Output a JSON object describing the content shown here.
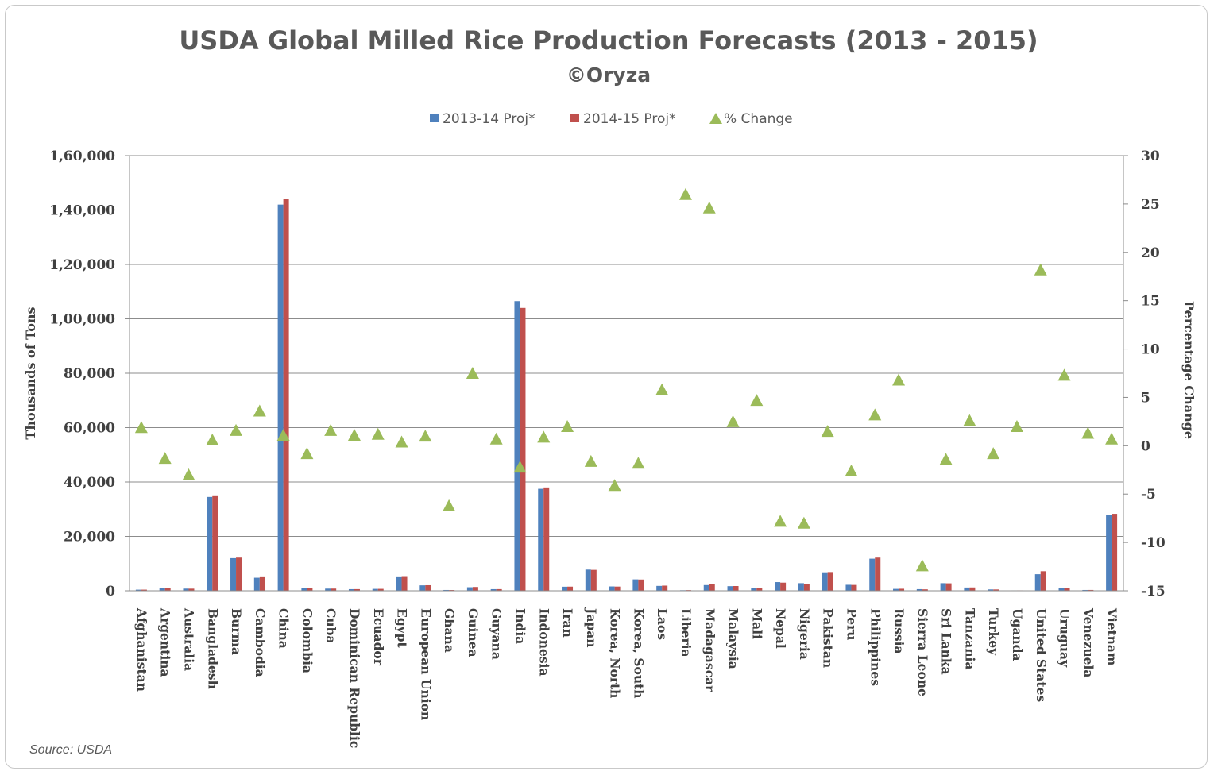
{
  "source_note": "Source: USDA",
  "chart_data": {
    "type": "bar",
    "title": "USDA Global Milled Rice Production Forecasts (2013 - 2015)",
    "subtitle": "©Oryza",
    "ylabel": "Thousands of Tons",
    "y2label": "Percentage Change",
    "ylim": [
      0,
      160000
    ],
    "y2lim": [
      -15,
      30
    ],
    "yticks": [
      "0",
      "20,000",
      "40,000",
      "60,000",
      "80,000",
      "1,00,000",
      "1,20,000",
      "1,40,000",
      "1,60,000"
    ],
    "y2ticks": [
      "-15",
      "-10",
      "-5",
      "0",
      "5",
      "10",
      "15",
      "20",
      "25",
      "30"
    ],
    "grid": true,
    "legend_position": "top-center",
    "colors": {
      "s1": "#4f81bd",
      "s2": "#c0504d",
      "s3": "#9bbb59"
    },
    "categories": [
      "Afghanistan",
      "Argentina",
      "Australia",
      "Bangladesh",
      "Burma",
      "Cambodia",
      "China",
      "Colombia",
      "Cuba",
      "Dominican Republic",
      "Ecuador",
      "Egypt",
      "European Union",
      "Ghana",
      "Guinea",
      "Guyana",
      "India",
      "Indonesia",
      "Iran",
      "Japan",
      "Korea, North",
      "Korea, South",
      "Laos",
      "Liberia",
      "Madagascar",
      "Malaysia",
      "Mali",
      "Nepal",
      "Nigeria",
      "Pakistan",
      "Peru",
      "Philippines",
      "Russia",
      "Sierra Leone",
      "Sri Lanka",
      "Tanzania",
      "Turkey",
      "Uganda",
      "United States",
      "Uruguay",
      "Venezuela",
      "Vietnam"
    ],
    "series": [
      {
        "name": "2013-14 Proj*",
        "kind": "bar",
        "axis": "left",
        "values": [
          410,
          1050,
          800,
          34500,
          12000,
          4800,
          142000,
          1000,
          800,
          600,
          700,
          5000,
          2000,
          300,
          1300,
          600,
          106500,
          37500,
          1500,
          7800,
          1600,
          4200,
          1800,
          200,
          2100,
          1700,
          1000,
          3200,
          2800,
          6800,
          2200,
          11800,
          700,
          600,
          2800,
          1200,
          500,
          150,
          6100,
          1000,
          300,
          28000
        ]
      },
      {
        "name": "2014-15 Proj*",
        "kind": "bar",
        "axis": "left",
        "values": [
          420,
          1030,
          780,
          34800,
          12200,
          5000,
          144000,
          990,
          810,
          610,
          710,
          5100,
          2050,
          280,
          1400,
          610,
          104000,
          38000,
          1530,
          7700,
          1550,
          4150,
          1900,
          250,
          2600,
          1750,
          1050,
          3000,
          2600,
          6900,
          2150,
          12200,
          750,
          530,
          2750,
          1230,
          490,
          155,
          7200,
          1100,
          310,
          28300
        ]
      },
      {
        "name": "% Change",
        "kind": "scatter",
        "axis": "right",
        "values": [
          1.9,
          -1.3,
          -3.0,
          0.6,
          1.6,
          3.6,
          1.1,
          -0.8,
          1.6,
          1.1,
          1.2,
          0.4,
          1.0,
          -6.2,
          7.5,
          0.7,
          -2.2,
          0.9,
          2.0,
          -1.6,
          -4.1,
          -1.8,
          5.8,
          26.0,
          24.6,
          2.5,
          4.7,
          -7.8,
          -8.0,
          1.5,
          -2.6,
          3.2,
          6.8,
          -12.4,
          -1.4,
          2.6,
          -0.8,
          2.0,
          18.2,
          7.3,
          1.3,
          0.7
        ]
      }
    ]
  }
}
